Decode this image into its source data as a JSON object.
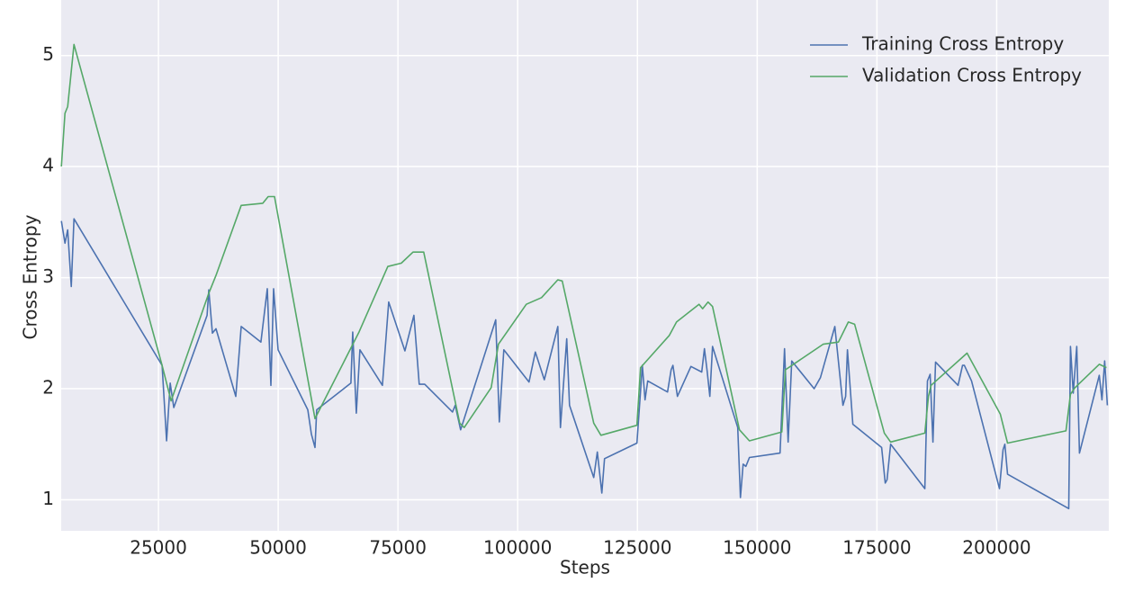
{
  "chart_data": {
    "type": "line",
    "x_label": "Steps",
    "y_label": "Cross Entropy",
    "xlim": [
      4700,
      223400
    ],
    "ylim": [
      0.72,
      5.5
    ],
    "xticks": [
      25000,
      50000,
      75000,
      100000,
      125000,
      150000,
      175000,
      200000
    ],
    "yticks": [
      1,
      2,
      3,
      4,
      5
    ],
    "grid": true,
    "legend": "upper right",
    "series": [
      {
        "name": "Training Cross Entropy",
        "color": "#4c72b0",
        "x": [
          4730,
          5480,
          6050,
          6800,
          7360,
          25760,
          26700,
          27450,
          28200,
          35150,
          35520,
          36270,
          37020,
          41150,
          42280,
          46400,
          47730,
          48480,
          49040,
          49980,
          56180,
          56930,
          57680,
          58050,
          65190,
          65560,
          66310,
          67060,
          71760,
          73070,
          76450,
          78330,
          79450,
          80580,
          86400,
          86960,
          88090,
          95410,
          96170,
          97100,
          102360,
          103670,
          105550,
          108370,
          108930,
          110240,
          110810,
          115880,
          116630,
          117570,
          118130,
          124890,
          126020,
          126580,
          127150,
          131280,
          132030,
          132410,
          133350,
          136160,
          138420,
          138980,
          139540,
          140110,
          140670,
          145930,
          146490,
          147060,
          147620,
          148370,
          154760,
          155700,
          156450,
          157200,
          161890,
          163200,
          166210,
          167900,
          168460,
          168840,
          169970,
          175980,
          176730,
          177100,
          177850,
          184990,
          185550,
          186110,
          186680,
          187240,
          191930,
          192870,
          193250,
          194750,
          200570,
          201320,
          201700,
          202260,
          215030,
          215400,
          215970,
          216720,
          217280,
          221410,
          221980,
          222540,
          223100
        ],
        "values": [
          3.51,
          3.31,
          3.43,
          2.92,
          3.53,
          2.21,
          1.53,
          2.05,
          1.83,
          2.66,
          2.89,
          2.5,
          2.54,
          1.93,
          2.56,
          2.42,
          2.9,
          2.03,
          2.9,
          2.35,
          1.81,
          1.59,
          1.47,
          1.81,
          2.05,
          2.51,
          1.78,
          2.35,
          2.03,
          2.78,
          2.34,
          2.66,
          2.04,
          2.04,
          1.79,
          1.85,
          1.63,
          2.62,
          1.7,
          2.35,
          2.06,
          2.33,
          2.08,
          2.56,
          1.65,
          2.45,
          1.85,
          1.2,
          1.43,
          1.06,
          1.37,
          1.51,
          2.21,
          1.9,
          2.07,
          1.97,
          2.17,
          2.21,
          1.93,
          2.2,
          2.15,
          2.36,
          2.16,
          1.93,
          2.38,
          1.65,
          1.02,
          1.32,
          1.3,
          1.38,
          1.42,
          2.36,
          1.52,
          2.25,
          2.0,
          2.1,
          2.56,
          1.85,
          1.93,
          2.35,
          1.68,
          1.47,
          1.15,
          1.18,
          1.5,
          1.1,
          2.07,
          2.13,
          1.52,
          2.24,
          2.03,
          2.21,
          2.21,
          2.07,
          1.1,
          1.45,
          1.5,
          1.23,
          0.92,
          2.38,
          1.96,
          2.38,
          1.42,
          2.12,
          1.9,
          2.25,
          1.85
        ]
      },
      {
        "name": "Validation Cross Entropy",
        "color": "#55a868",
        "x": [
          4730,
          5480,
          6050,
          7360,
          25760,
          27640,
          35520,
          37020,
          42280,
          46780,
          47910,
          49230,
          57680,
          66870,
          72880,
          75700,
          78140,
          80390,
          87900,
          88840,
          94470,
          95970,
          101800,
          104980,
          108370,
          109300,
          115880,
          117380,
          124890,
          125640,
          131650,
          133150,
          137850,
          138600,
          139730,
          140670,
          146300,
          148370,
          155140,
          155890,
          163760,
          166960,
          169030,
          170350,
          176540,
          177850,
          184990,
          185740,
          186300,
          193810,
          200760,
          202260,
          214460,
          215400,
          216350,
          221410,
          222920
        ],
        "values": [
          4.0,
          4.48,
          4.54,
          5.1,
          2.21,
          1.89,
          2.86,
          3.02,
          3.65,
          3.67,
          3.73,
          3.73,
          1.73,
          2.51,
          3.1,
          3.13,
          3.23,
          3.23,
          1.69,
          1.65,
          2.01,
          2.4,
          2.76,
          2.82,
          2.98,
          2.97,
          1.69,
          1.58,
          1.67,
          2.19,
          2.48,
          2.6,
          2.76,
          2.72,
          2.78,
          2.74,
          1.63,
          1.53,
          1.61,
          2.17,
          2.4,
          2.42,
          2.6,
          2.58,
          1.6,
          1.52,
          1.6,
          1.93,
          2.03,
          2.32,
          1.77,
          1.51,
          1.62,
          1.95,
          2.01,
          2.22,
          2.19
        ]
      }
    ]
  }
}
